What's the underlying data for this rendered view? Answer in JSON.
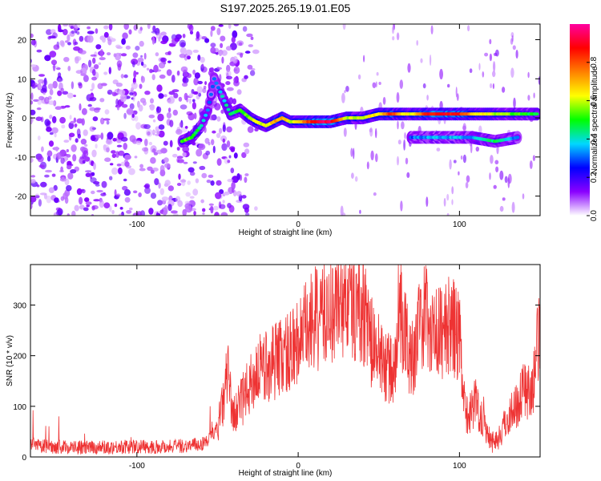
{
  "chart_data": [
    {
      "type": "heatmap",
      "title": "S197.2025.265.19.01.E05",
      "xlabel": "Height of straight line (km)",
      "ylabel": "Frequency (Hz)",
      "xlim": [
        -166,
        150
      ],
      "ylim": [
        -25,
        24
      ],
      "xticks": [
        -100,
        0,
        100
      ],
      "yticks": [
        -20,
        -10,
        0,
        10,
        20
      ],
      "colorbar": {
        "label": "Normalized spectral amplitude",
        "range": [
          0,
          1
        ],
        "ticks": [
          "0.0",
          "0.2",
          "0.4",
          "0.6",
          "0.8"
        ],
        "tick_values": [
          0.0,
          0.2,
          0.4,
          0.6,
          0.8
        ],
        "colormap": [
          "#ffffff",
          "#8a00ff",
          "#0000ff",
          "#00d8ff",
          "#00ff00",
          "#ffff00",
          "#ff8000",
          "#ff0000",
          "#ff00a0"
        ]
      },
      "ridge": [
        {
          "x": -72,
          "y": -6,
          "a": 0.55
        },
        {
          "x": -66,
          "y": -5,
          "a": 0.5
        },
        {
          "x": -60,
          "y": -2,
          "a": 0.45
        },
        {
          "x": -56,
          "y": 2,
          "a": 0.35
        },
        {
          "x": -54,
          "y": 6,
          "a": 0.3
        },
        {
          "x": -52,
          "y": 10,
          "a": 0.3
        },
        {
          "x": -42,
          "y": 1,
          "a": 0.45
        },
        {
          "x": -36,
          "y": 2,
          "a": 0.5
        },
        {
          "x": -30,
          "y": 0,
          "a": 0.55
        },
        {
          "x": -26,
          "y": -1,
          "a": 0.6
        },
        {
          "x": -20,
          "y": -2,
          "a": 0.6
        },
        {
          "x": -15,
          "y": -1,
          "a": 0.7
        },
        {
          "x": -10,
          "y": 0,
          "a": 0.75
        },
        {
          "x": -5,
          "y": -1,
          "a": 0.6
        },
        {
          "x": 0,
          "y": -1,
          "a": 0.65
        },
        {
          "x": 10,
          "y": -1,
          "a": 0.9
        },
        {
          "x": 20,
          "y": -1,
          "a": 0.95
        },
        {
          "x": 30,
          "y": 0,
          "a": 0.6
        },
        {
          "x": 40,
          "y": 0,
          "a": 0.6
        },
        {
          "x": 50,
          "y": 1,
          "a": 0.65
        },
        {
          "x": 58,
          "y": 1,
          "a": 0.85
        },
        {
          "x": 66,
          "y": 1,
          "a": 0.6
        },
        {
          "x": 72,
          "y": 1,
          "a": 0.65
        },
        {
          "x": 80,
          "y": 1,
          "a": 0.85
        },
        {
          "x": 90,
          "y": 1,
          "a": 0.9
        },
        {
          "x": 100,
          "y": 1,
          "a": 0.85
        },
        {
          "x": 110,
          "y": 1,
          "a": 0.65
        },
        {
          "x": 120,
          "y": 1,
          "a": 0.6
        },
        {
          "x": 130,
          "y": 1,
          "a": 0.55
        },
        {
          "x": 140,
          "y": 1,
          "a": 0.5
        },
        {
          "x": 148,
          "y": 1,
          "a": 0.45
        }
      ],
      "secondary_ridge": [
        {
          "x": 70,
          "y": -5,
          "a": 0.3
        },
        {
          "x": 82,
          "y": -5,
          "a": 0.35
        },
        {
          "x": 96,
          "y": -5,
          "a": 0.35
        },
        {
          "x": 108,
          "y": -5,
          "a": 0.35
        },
        {
          "x": 122,
          "y": -6,
          "a": 0.45
        },
        {
          "x": 136,
          "y": -5,
          "a": 0.3
        }
      ],
      "noise_region_x": [
        -166,
        -45
      ]
    },
    {
      "type": "line",
      "title": "",
      "xlabel": "Height of straight line (km)",
      "ylabel": "SNR (10 * v/v)",
      "xlim": [
        -166,
        150
      ],
      "ylim": [
        0,
        380
      ],
      "xticks": [
        -100,
        0,
        100
      ],
      "yticks": [
        0,
        100,
        200,
        300
      ],
      "color": "#ee3333",
      "series": [
        {
          "name": "SNR",
          "x": [
            -166,
            -150,
            -130,
            -110,
            -90,
            -70,
            -60,
            -55,
            -50,
            -46,
            -44,
            -42,
            -40,
            -38,
            -35,
            -30,
            -25,
            -20,
            -15,
            -10,
            -5,
            0,
            5,
            10,
            15,
            20,
            25,
            30,
            35,
            40,
            45,
            50,
            55,
            60,
            62,
            65,
            70,
            75,
            80,
            85,
            90,
            95,
            100,
            102,
            105,
            110,
            115,
            120,
            125,
            130,
            135,
            140,
            145,
            150
          ],
          "values": [
            22,
            20,
            18,
            20,
            20,
            22,
            25,
            35,
            60,
            110,
            180,
            120,
            80,
            90,
            110,
            140,
            170,
            180,
            190,
            200,
            210,
            230,
            250,
            270,
            280,
            290,
            300,
            310,
            305,
            300,
            230,
            200,
            180,
            160,
            320,
            260,
            190,
            250,
            290,
            240,
            250,
            260,
            240,
            120,
            80,
            110,
            70,
            30,
            40,
            80,
            100,
            140,
            120,
            260
          ]
        }
      ]
    }
  ]
}
